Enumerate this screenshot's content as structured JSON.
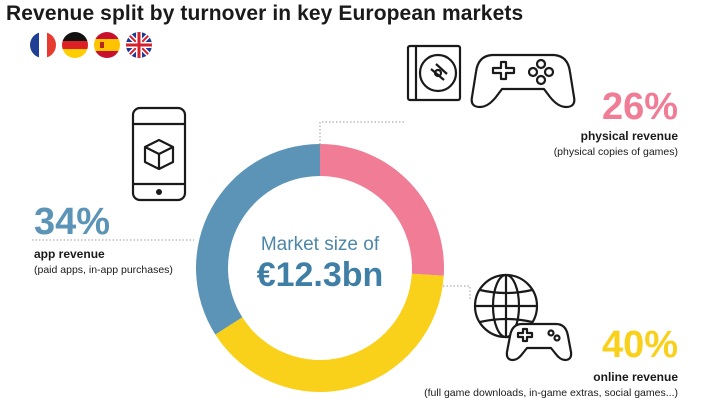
{
  "title": "Revenue split by turnover in key European markets",
  "flags": [
    "france-flag-icon",
    "germany-flag-icon",
    "spain-flag-icon",
    "uk-flag-icon"
  ],
  "center": {
    "line1": "Market size of",
    "line2": "€12.3bn"
  },
  "chart_data": {
    "type": "pie",
    "title": "Revenue split by turnover in key European markets",
    "slices": [
      {
        "label": "physical revenue",
        "value": 26,
        "display": "26%",
        "description": "(physical copies of games)",
        "color": "#f07c95"
      },
      {
        "label": "online revenue",
        "value": 40,
        "display": "40%",
        "description": "(full game downloads, in-game extras, social games...)",
        "color": "#f9d01a"
      },
      {
        "label": "app revenue",
        "value": 34,
        "display": "34%",
        "description": "(paid apps, in-app purchases)",
        "color": "#5b94b6"
      }
    ],
    "donut": true
  },
  "icons": {
    "physical": [
      "disc-case-icon",
      "gamepad-icon"
    ],
    "online": [
      "globe-icon",
      "controller-icon"
    ],
    "app": [
      "smartphone-icon"
    ]
  }
}
